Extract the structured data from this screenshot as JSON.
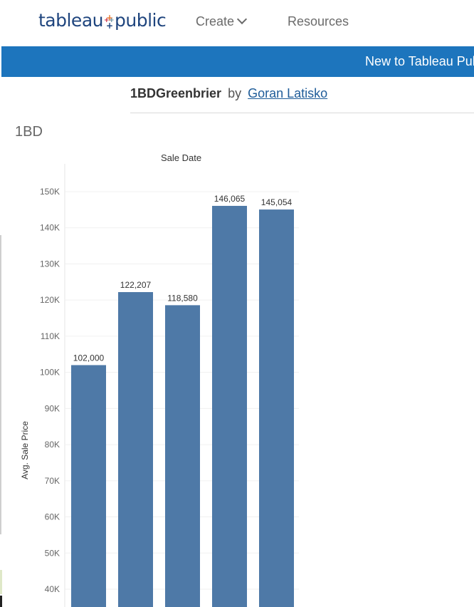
{
  "header": {
    "logo_text_left": "tableau",
    "logo_text_right": "public",
    "nav": [
      {
        "label": "Create"
      },
      {
        "label": "Resources"
      }
    ]
  },
  "banner": {
    "text": "New to Tableau Public"
  },
  "viz": {
    "name": "1BDGreenbrier",
    "by": "by",
    "author": "Goran Latisko"
  },
  "chart_data": {
    "type": "bar",
    "title": "1BD",
    "column_header": "Sale Date",
    "ylabel": "Avg. Sale Price",
    "categories": [
      "",
      "",
      "",
      "",
      ""
    ],
    "values": [
      102000,
      122207,
      118580,
      146065,
      145054
    ],
    "data_labels": [
      "102,000",
      "122,207",
      "118,580",
      "146,065",
      "145,054"
    ],
    "y_ticks": [
      40000,
      50000,
      60000,
      70000,
      80000,
      90000,
      100000,
      110000,
      120000,
      130000,
      140000,
      150000
    ],
    "y_tick_labels": [
      "40K",
      "50K",
      "60K",
      "70K",
      "80K",
      "90K",
      "100K",
      "110K",
      "120K",
      "130K",
      "140K",
      "150K"
    ],
    "ylim": [
      35000,
      155000
    ],
    "bar_color": "#4e79a7",
    "grid": true
  },
  "colors": {
    "banner_bg": "#1d75bd",
    "logo_blue": "#1f457e",
    "link": "#1f5c99"
  }
}
